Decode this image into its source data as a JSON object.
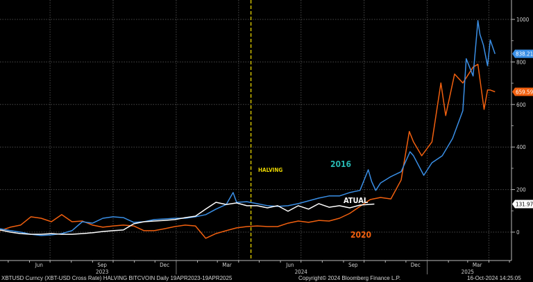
{
  "chart_data": {
    "type": "line",
    "title": "",
    "x_range": [
      "2023-04-19",
      "2025-04-19"
    ],
    "ylim": [
      -40,
      1090
    ],
    "y_ticks": [
      0,
      200,
      400,
      600,
      800,
      1000
    ],
    "x_month_labels": [
      {
        "label": "Jun",
        "date": "2023-06-15"
      },
      {
        "label": "Sep",
        "date": "2023-09-15"
      },
      {
        "label": "Dec",
        "date": "2023-12-15"
      },
      {
        "label": "Mar",
        "date": "2024-03-15"
      },
      {
        "label": "Jun",
        "date": "2024-06-15"
      },
      {
        "label": "Sep",
        "date": "2024-09-15"
      },
      {
        "label": "Dec",
        "date": "2024-12-15"
      },
      {
        "label": "Mar",
        "date": "2025-03-15"
      }
    ],
    "x_year_labels": [
      {
        "label": "2023",
        "date": "2023-09-15"
      },
      {
        "label": "2024",
        "date": "2024-07-01"
      },
      {
        "label": "2025",
        "date": "2025-03-01"
      }
    ],
    "grid": true,
    "legend": "none",
    "series": [
      {
        "name": "2016",
        "color": "#3a8fe6",
        "last_value_label": "838.21",
        "points": [
          [
            "2023-04-19",
            16
          ],
          [
            "2023-05-04",
            7
          ],
          [
            "2023-05-19",
            0
          ],
          [
            "2023-06-03",
            -10
          ],
          [
            "2023-06-18",
            -16
          ],
          [
            "2023-07-03",
            -13
          ],
          [
            "2023-07-18",
            -7
          ],
          [
            "2023-08-02",
            7
          ],
          [
            "2023-08-17",
            49
          ],
          [
            "2023-09-01",
            42
          ],
          [
            "2023-09-16",
            65
          ],
          [
            "2023-10-01",
            72
          ],
          [
            "2023-10-16",
            68
          ],
          [
            "2023-10-31",
            46
          ],
          [
            "2023-11-15",
            49
          ],
          [
            "2023-11-30",
            59
          ],
          [
            "2023-12-15",
            62
          ],
          [
            "2023-12-30",
            65
          ],
          [
            "2024-01-14",
            65
          ],
          [
            "2024-01-29",
            72
          ],
          [
            "2024-02-13",
            82
          ],
          [
            "2024-02-28",
            108
          ],
          [
            "2024-03-14",
            130
          ],
          [
            "2024-03-24",
            186
          ],
          [
            "2024-03-29",
            140
          ],
          [
            "2024-04-13",
            143
          ],
          [
            "2024-04-28",
            134
          ],
          [
            "2024-05-13",
            124
          ],
          [
            "2024-05-28",
            121
          ],
          [
            "2024-06-12",
            124
          ],
          [
            "2024-06-27",
            134
          ],
          [
            "2024-07-12",
            147
          ],
          [
            "2024-07-27",
            160
          ],
          [
            "2024-08-11",
            170
          ],
          [
            "2024-08-26",
            170
          ],
          [
            "2024-09-10",
            186
          ],
          [
            "2024-09-25",
            196
          ],
          [
            "2024-10-07",
            293
          ],
          [
            "2024-10-12",
            238
          ],
          [
            "2024-10-18",
            196
          ],
          [
            "2024-10-25",
            231
          ],
          [
            "2024-11-09",
            261
          ],
          [
            "2024-11-24",
            284
          ],
          [
            "2024-12-07",
            378
          ],
          [
            "2024-12-12",
            359
          ],
          [
            "2024-12-27",
            267
          ],
          [
            "2025-01-08",
            326
          ],
          [
            "2025-01-23",
            359
          ],
          [
            "2025-02-07",
            440
          ],
          [
            "2025-02-22",
            571
          ],
          [
            "2025-02-27",
            815
          ],
          [
            "2025-03-09",
            734
          ],
          [
            "2025-03-16",
            994
          ],
          [
            "2025-03-19",
            929
          ],
          [
            "2025-03-24",
            880
          ],
          [
            "2025-03-30",
            782
          ],
          [
            "2025-04-03",
            903
          ],
          [
            "2025-04-10",
            838.21
          ]
        ]
      },
      {
        "name": "2020",
        "color": "#f2600f",
        "last_value_label": "659.59",
        "points": [
          [
            "2023-04-19",
            7
          ],
          [
            "2023-05-04",
            23
          ],
          [
            "2023-05-19",
            33
          ],
          [
            "2023-06-03",
            72
          ],
          [
            "2023-06-18",
            65
          ],
          [
            "2023-07-03",
            49
          ],
          [
            "2023-07-18",
            82
          ],
          [
            "2023-08-02",
            49
          ],
          [
            "2023-08-17",
            52
          ],
          [
            "2023-09-01",
            33
          ],
          [
            "2023-09-16",
            23
          ],
          [
            "2023-10-01",
            29
          ],
          [
            "2023-10-16",
            33
          ],
          [
            "2023-10-31",
            29
          ],
          [
            "2023-11-15",
            7
          ],
          [
            "2023-11-30",
            7
          ],
          [
            "2023-12-15",
            16
          ],
          [
            "2023-12-30",
            26
          ],
          [
            "2024-01-14",
            33
          ],
          [
            "2024-01-29",
            29
          ],
          [
            "2024-02-13",
            -29
          ],
          [
            "2024-02-28",
            -7
          ],
          [
            "2024-03-14",
            7
          ],
          [
            "2024-03-29",
            20
          ],
          [
            "2024-04-13",
            26
          ],
          [
            "2024-04-28",
            29
          ],
          [
            "2024-05-13",
            26
          ],
          [
            "2024-05-28",
            26
          ],
          [
            "2024-06-12",
            42
          ],
          [
            "2024-06-27",
            52
          ],
          [
            "2024-07-12",
            46
          ],
          [
            "2024-07-27",
            55
          ],
          [
            "2024-08-11",
            52
          ],
          [
            "2024-08-26",
            65
          ],
          [
            "2024-09-10",
            88
          ],
          [
            "2024-09-25",
            121
          ],
          [
            "2024-10-10",
            153
          ],
          [
            "2024-10-25",
            163
          ],
          [
            "2024-11-09",
            156
          ],
          [
            "2024-11-24",
            245
          ],
          [
            "2024-12-06",
            473
          ],
          [
            "2024-12-12",
            424
          ],
          [
            "2024-12-24",
            359
          ],
          [
            "2025-01-08",
            424
          ],
          [
            "2025-01-21",
            701
          ],
          [
            "2025-01-28",
            548
          ],
          [
            "2025-02-10",
            743
          ],
          [
            "2025-02-22",
            701
          ],
          [
            "2025-03-09",
            776
          ],
          [
            "2025-03-16",
            789
          ],
          [
            "2025-03-25",
            577
          ],
          [
            "2025-03-30",
            668
          ],
          [
            "2025-04-03",
            668
          ],
          [
            "2025-04-10",
            659.59
          ]
        ]
      },
      {
        "name": "ATUAL",
        "color": "#ffffff",
        "last_value_label": "131.97",
        "points": [
          [
            "2023-04-19",
            10
          ],
          [
            "2023-05-04",
            0
          ],
          [
            "2023-05-19",
            -7
          ],
          [
            "2023-06-03",
            -10
          ],
          [
            "2023-06-18",
            -10
          ],
          [
            "2023-07-03",
            -7
          ],
          [
            "2023-07-18",
            -10
          ],
          [
            "2023-08-02",
            -10
          ],
          [
            "2023-08-17",
            -7
          ],
          [
            "2023-09-01",
            -3
          ],
          [
            "2023-09-16",
            3
          ],
          [
            "2023-10-01",
            7
          ],
          [
            "2023-10-16",
            10
          ],
          [
            "2023-10-31",
            39
          ],
          [
            "2023-11-15",
            49
          ],
          [
            "2023-11-30",
            52
          ],
          [
            "2023-12-15",
            55
          ],
          [
            "2023-12-30",
            59
          ],
          [
            "2024-01-14",
            68
          ],
          [
            "2024-01-29",
            75
          ],
          [
            "2024-02-13",
            108
          ],
          [
            "2024-02-28",
            140
          ],
          [
            "2024-03-14",
            130
          ],
          [
            "2024-03-29",
            137
          ],
          [
            "2024-04-13",
            124
          ],
          [
            "2024-04-28",
            124
          ],
          [
            "2024-05-13",
            114
          ],
          [
            "2024-05-28",
            124
          ],
          [
            "2024-06-12",
            98
          ],
          [
            "2024-06-27",
            124
          ],
          [
            "2024-07-12",
            108
          ],
          [
            "2024-07-27",
            134
          ],
          [
            "2024-08-11",
            117
          ],
          [
            "2024-08-26",
            124
          ],
          [
            "2024-09-10",
            114
          ],
          [
            "2024-09-25",
            127
          ],
          [
            "2024-10-16",
            131.97
          ]
        ]
      }
    ],
    "annotations": [
      {
        "text": "HALVING",
        "date": "2024-04-19",
        "color": "#e8d400",
        "type": "vertical-dashed-line"
      },
      {
        "text": "2016",
        "color": "#27b6b0"
      },
      {
        "text": "ATUAL",
        "color": "#ffffff"
      },
      {
        "text": "2020",
        "color": "#f2600f"
      }
    ]
  },
  "footer": {
    "left": "XBTUSD Curncy (XBT-USD Cross Rate) HALVING BITCVOIN  Daily 19APR2023-19APR2025",
    "center": "Copyright© 2024 Bloomberg Finance L.P.",
    "right": "16-Oct-2024 14:25:05"
  }
}
